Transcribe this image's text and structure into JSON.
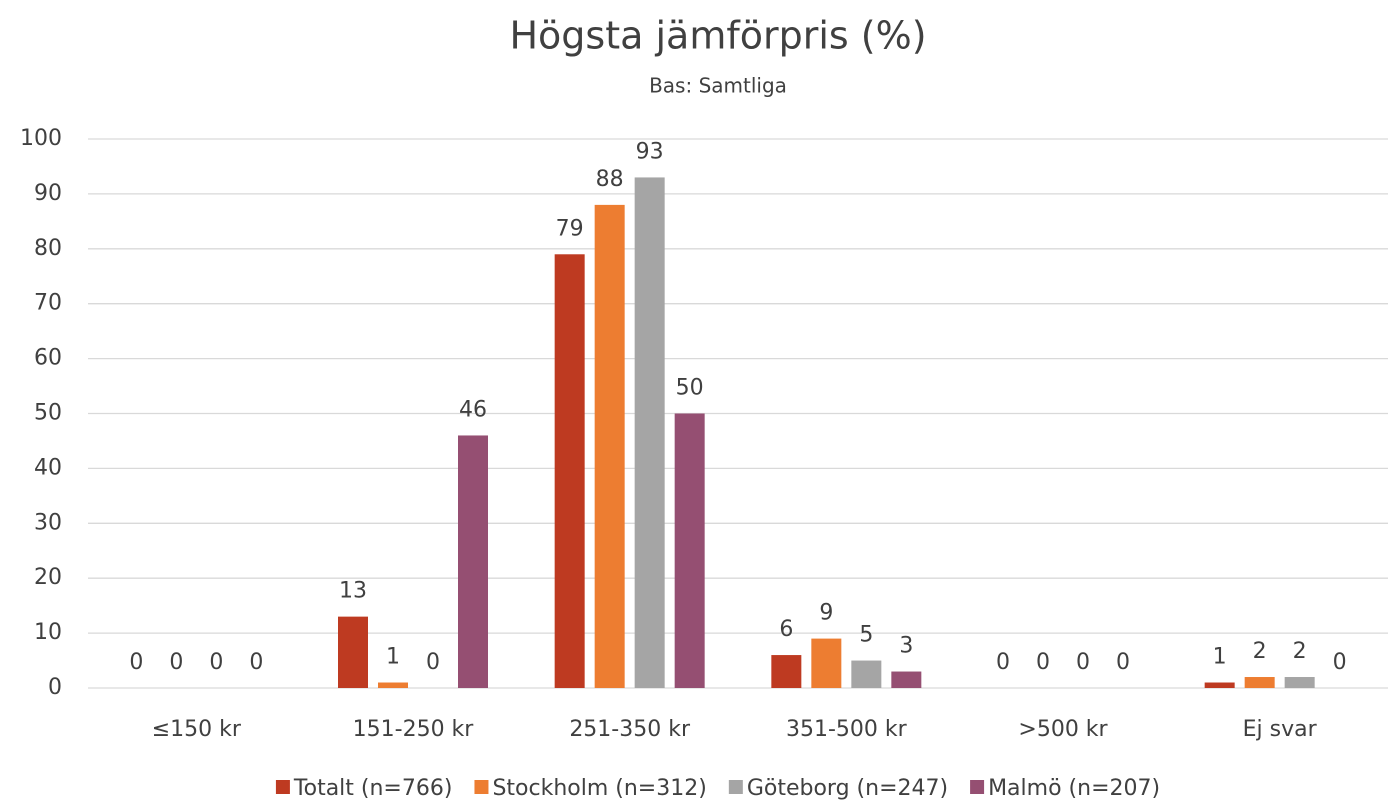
{
  "chart_data": {
    "type": "bar",
    "title": "Högsta jämförpris (%)",
    "subtitle": "Bas: Samtliga",
    "categories": [
      "≤150 kr",
      "151-250 kr",
      "251-350 kr",
      "351-500 kr",
      ">500 kr",
      "Ej svar"
    ],
    "series": [
      {
        "name": "Totalt (n=766)",
        "color": "#be3a21",
        "values": [
          0,
          13,
          79,
          6,
          0,
          1
        ]
      },
      {
        "name": "Stockholm (n=312)",
        "color": "#ed7d31",
        "values": [
          0,
          1,
          88,
          9,
          0,
          2
        ]
      },
      {
        "name": "Göteborg (n=247)",
        "color": "#a5a5a5",
        "values": [
          0,
          0,
          93,
          5,
          0,
          2
        ]
      },
      {
        "name": "Malmö (n=207)",
        "color": "#954f72",
        "values": [
          0,
          46,
          50,
          3,
          0,
          0
        ]
      }
    ],
    "ylim": [
      0,
      100
    ],
    "yticks": [
      0,
      10,
      20,
      30,
      40,
      50,
      60,
      70,
      80,
      90,
      100
    ],
    "grid": true,
    "legend": "bottom"
  }
}
